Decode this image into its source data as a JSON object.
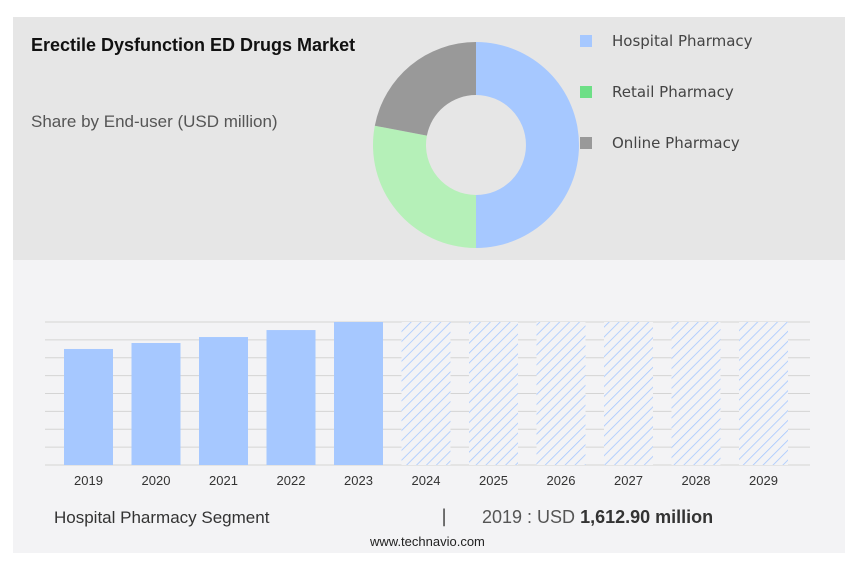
{
  "chart_data": [
    {
      "type": "pie",
      "title": "Erectile Dysfunction ED Drugs Market",
      "subtitle": "Share by End-user (USD million)",
      "legend_position": "right",
      "slices": [
        {
          "label": "Hospital Pharmacy",
          "value": 50,
          "color": "#a6c8ff"
        },
        {
          "label": "Retail Pharmacy",
          "value": 28,
          "color": "#b5f0b8",
          "legend_color": "#6ddf86"
        },
        {
          "label": "Online Pharmacy",
          "value": 22,
          "color": "#999999"
        }
      ]
    },
    {
      "type": "bar",
      "categories": [
        "2019",
        "2020",
        "2021",
        "2022",
        "2023",
        "2024",
        "2025",
        "2026",
        "2027",
        "2028",
        "2029"
      ],
      "values": [
        1612.9,
        1696,
        1779,
        1876,
        1988,
        null,
        null,
        null,
        null,
        null,
        null
      ],
      "forecast_from": "2024",
      "ylim": [
        0,
        1988
      ],
      "grid": true,
      "color": "#a6c8ff"
    }
  ],
  "footer": {
    "segment": "Hospital Pharmacy Segment",
    "separator": "|",
    "value_prefix": "2019 : USD",
    "value": "1,612.90 million",
    "site": "www.technavio.com"
  }
}
